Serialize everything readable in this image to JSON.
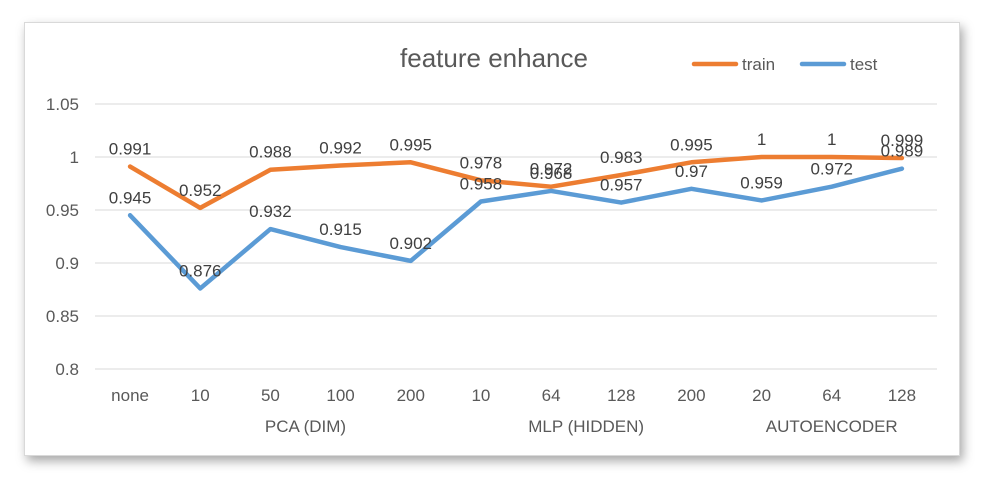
{
  "chart_data": {
    "type": "line",
    "title": "feature enhance",
    "categories": [
      "none",
      "10",
      "50",
      "100",
      "200",
      "10",
      "64",
      "128",
      "200",
      "20",
      "64",
      "128"
    ],
    "groups": [
      {
        "label": "PCA (DIM)",
        "start": 1,
        "end": 4
      },
      {
        "label": "MLP (HIDDEN)",
        "start": 5,
        "end": 8
      },
      {
        "label": "AUTOENCODER",
        "start": 9,
        "end": 11
      }
    ],
    "series": [
      {
        "name": "train",
        "color": "#ED7D31",
        "values": [
          0.991,
          0.952,
          0.988,
          0.992,
          0.995,
          0.978,
          0.972,
          0.983,
          0.995,
          1,
          1,
          0.999
        ]
      },
      {
        "name": "test",
        "color": "#5B9BD5",
        "values": [
          0.945,
          0.876,
          0.932,
          0.915,
          0.902,
          0.958,
          0.968,
          0.957,
          0.97,
          0.959,
          0.972,
          0.989
        ]
      }
    ],
    "yticks": [
      "0.8",
      "0.85",
      "0.9",
      "0.95",
      "1",
      "1.05"
    ],
    "ylim": [
      0.8,
      1.05
    ],
    "grid": true,
    "legend": "top-right"
  }
}
